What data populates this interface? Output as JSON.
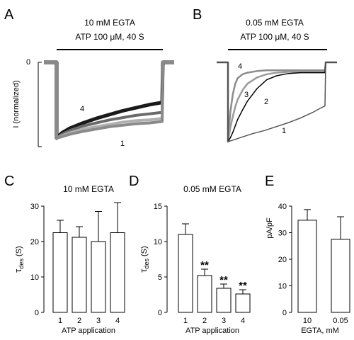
{
  "chart_data": [
    {
      "panel": "A",
      "type": "line",
      "annotations": [
        "10 mM EGTA",
        "ATP 100 μM, 40 S"
      ],
      "ylabel": "I (normalized)",
      "ytick_labels": [
        "0"
      ],
      "series": [
        {
          "name": "4",
          "color": "#1a1a1a",
          "x": [
            0,
            2,
            5,
            10,
            15,
            20,
            25,
            30,
            35,
            40
          ],
          "y": [
            -1.0,
            -0.93,
            -0.87,
            -0.8,
            -0.74,
            -0.69,
            -0.64,
            -0.6,
            -0.56,
            -0.53
          ]
        },
        {
          "name": "",
          "color": "#6a6a6a",
          "x": [
            0,
            2,
            5,
            10,
            15,
            20,
            25,
            30,
            35,
            40
          ],
          "y": [
            -1.0,
            -0.95,
            -0.9,
            -0.84,
            -0.8,
            -0.76,
            -0.73,
            -0.7,
            -0.68,
            -0.66
          ]
        },
        {
          "name": "",
          "color": "#b0b0b0",
          "x": [
            0,
            2,
            5,
            10,
            15,
            20,
            25,
            30,
            35,
            40
          ],
          "y": [
            -1.0,
            -0.97,
            -0.93,
            -0.88,
            -0.85,
            -0.82,
            -0.79,
            -0.77,
            -0.76,
            -0.74
          ]
        },
        {
          "name": "1",
          "color": "#8a8a8a",
          "x": [
            0,
            2,
            5,
            10,
            15,
            20,
            25,
            30,
            35,
            40
          ],
          "y": [
            -1.0,
            -0.98,
            -0.95,
            -0.91,
            -0.88,
            -0.85,
            -0.83,
            -0.81,
            -0.8,
            -0.78
          ]
        }
      ]
    },
    {
      "panel": "B",
      "type": "line",
      "annotations": [
        "0.05 mM EGTA",
        "ATP 100 μM, 40 S"
      ],
      "series": [
        {
          "name": "4",
          "color": "#8c8c8c",
          "x": [
            0,
            1,
            2,
            3,
            4,
            6,
            8,
            12,
            16,
            20,
            25,
            30,
            35,
            40
          ],
          "y": [
            -1.0,
            -0.62,
            -0.4,
            -0.27,
            -0.2,
            -0.15,
            -0.13,
            -0.11,
            -0.1,
            -0.1,
            -0.1,
            -0.1,
            -0.1,
            -0.1
          ]
        },
        {
          "name": "3",
          "color": "#9a9a9a",
          "x": [
            0,
            1,
            2,
            3,
            4,
            6,
            8,
            12,
            16,
            20,
            25,
            30,
            35,
            40
          ],
          "y": [
            -1.0,
            -0.82,
            -0.68,
            -0.56,
            -0.47,
            -0.35,
            -0.27,
            -0.19,
            -0.15,
            -0.13,
            -0.12,
            -0.12,
            -0.12,
            -0.12
          ]
        },
        {
          "name": "2",
          "color": "#000000",
          "x": [
            0,
            1,
            2,
            3,
            4,
            6,
            8,
            12,
            16,
            20,
            25,
            30,
            35,
            40
          ],
          "y": [
            -1.0,
            -0.95,
            -0.88,
            -0.8,
            -0.72,
            -0.6,
            -0.49,
            -0.33,
            -0.22,
            -0.17,
            -0.14,
            -0.13,
            -0.13,
            -0.13
          ]
        },
        {
          "name": "1",
          "color": "#555555",
          "x": [
            0,
            2,
            5,
            10,
            15,
            20,
            25,
            30,
            35,
            38,
            40
          ],
          "y": [
            -1.0,
            -0.98,
            -0.95,
            -0.9,
            -0.86,
            -0.81,
            -0.76,
            -0.7,
            -0.63,
            -0.58,
            -0.55
          ]
        }
      ]
    },
    {
      "panel": "C",
      "type": "bar",
      "title": "10 mM EGTA",
      "ylabel_main": "τ",
      "ylabel_sub": "des",
      "ylabel_unit": " (S)",
      "xlabel": "ATP application",
      "categories": [
        "1",
        "2",
        "3",
        "4"
      ],
      "values": [
        22.5,
        21.2,
        20.0,
        22.5
      ],
      "errors": [
        3.5,
        3.0,
        8.5,
        8.5
      ],
      "ylim": [
        0,
        30
      ],
      "yticks": [
        0,
        10,
        20,
        30
      ],
      "significance": [
        "",
        "",
        "",
        ""
      ]
    },
    {
      "panel": "D",
      "type": "bar",
      "title": "0.05 mM EGTA",
      "ylabel_main": "τ",
      "ylabel_sub": "des",
      "ylabel_unit": " (S)",
      "xlabel": "ATP application",
      "categories": [
        "1",
        "2",
        "3",
        "4"
      ],
      "values": [
        11.0,
        5.2,
        3.4,
        2.6
      ],
      "errors": [
        1.5,
        0.9,
        0.6,
        0.6
      ],
      "ylim": [
        0,
        15
      ],
      "yticks": [
        0,
        5,
        10,
        15
      ],
      "significance": [
        "",
        "**",
        "**",
        "**"
      ]
    },
    {
      "panel": "E",
      "type": "bar",
      "ylabel": "pA/pF",
      "xlabel": "EGTA, mM",
      "categories": [
        "10",
        "0.05"
      ],
      "values": [
        34.7,
        27.5
      ],
      "errors": [
        4.0,
        8.5
      ],
      "ylim": [
        0,
        40
      ],
      "yticks": [
        0,
        10,
        20,
        30,
        40
      ],
      "significance": [
        "",
        ""
      ]
    }
  ]
}
